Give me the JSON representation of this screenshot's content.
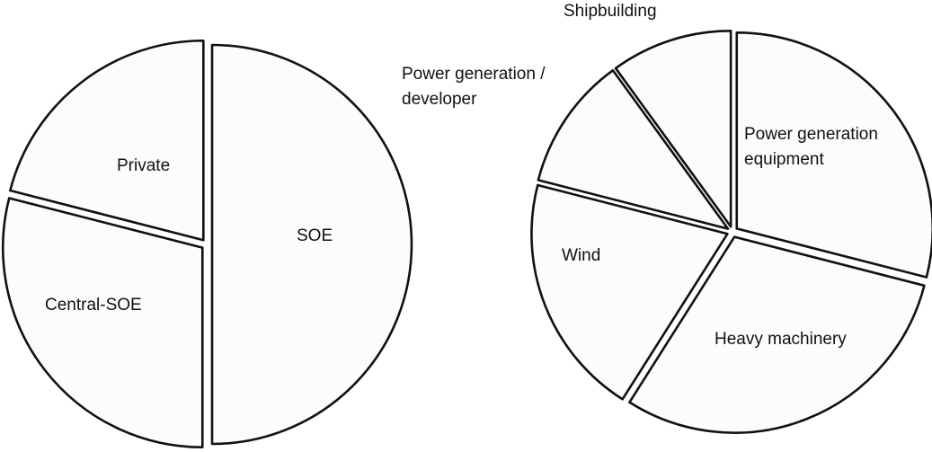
{
  "chart_data": [
    {
      "type": "pie",
      "categories": [
        "SOE",
        "Central-SOE",
        "Private"
      ],
      "values": [
        50,
        29,
        21
      ],
      "color": "#fcfcfc"
    },
    {
      "type": "pie",
      "categories": [
        "Power generation equipment",
        "Heavy machinery",
        "Wind",
        "Power generation / developer",
        "Shipbuilding"
      ],
      "values": [
        29,
        30,
        20,
        11,
        10
      ],
      "color": "#fcfcfc"
    }
  ]
}
